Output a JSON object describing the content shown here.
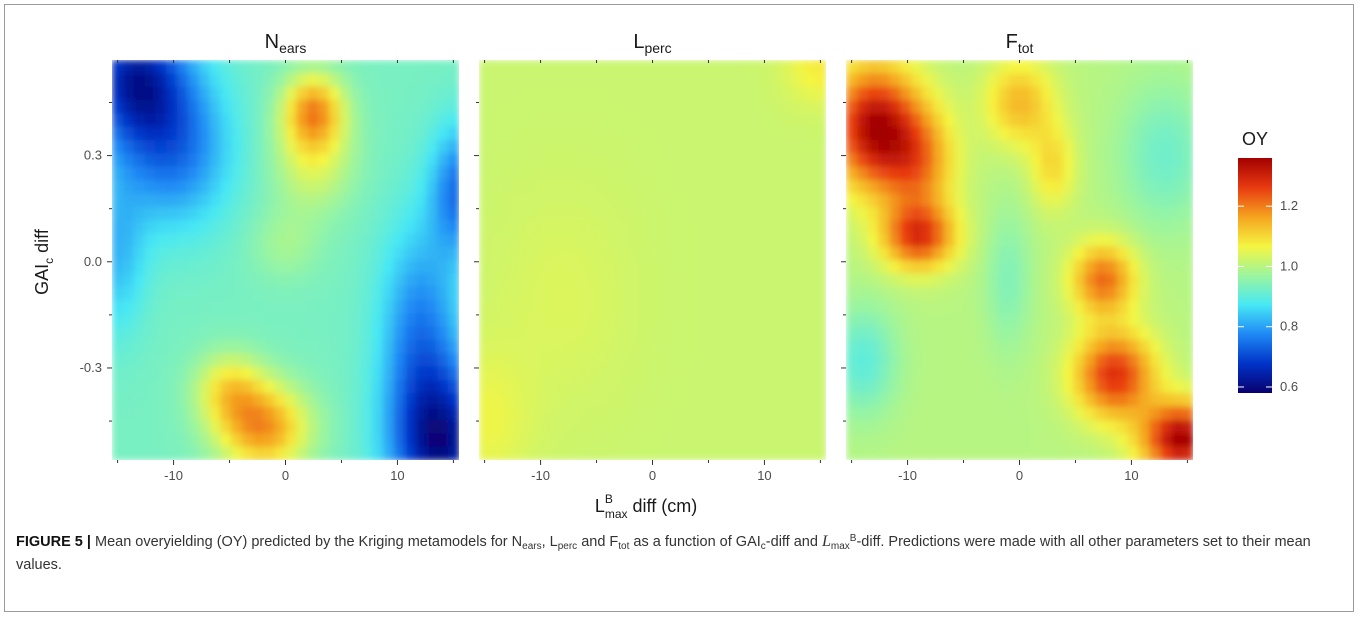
{
  "chart_data": {
    "type": "heatmap",
    "panels": [
      {
        "title": "N",
        "title_sub": "ears"
      },
      {
        "title": "L",
        "title_sub": "perc"
      },
      {
        "title": "F",
        "title_sub": "tot"
      }
    ],
    "x_ticks": [
      -10,
      0,
      10
    ],
    "y_ticks": [
      0.3,
      0.0,
      -0.3
    ],
    "x_tick_labels": [
      "-10",
      "0",
      "10"
    ],
    "y_tick_labels": [
      "0.3",
      "0.0",
      "-0.3"
    ],
    "xlim": [
      -15.5,
      15.5
    ],
    "ylim": [
      -0.56,
      0.57
    ],
    "xlabel": {
      "main": "L",
      "sup": "B",
      "sub": "max",
      "rest": " diff (cm)"
    },
    "ylabel": {
      "main": "GAI",
      "sub": "c",
      "rest": " diff"
    },
    "legend": {
      "title": "OY",
      "placement": "right",
      "ticks": [
        1.2,
        1.0,
        0.8,
        0.6
      ],
      "tick_labels": [
        "1.2",
        "1.0",
        "0.8",
        "0.6"
      ],
      "range": [
        0.58,
        1.36
      ],
      "colormap": [
        "#08006e",
        "#0033c8",
        "#1f88f5",
        "#47e8f5",
        "#9cf59e",
        "#f5f542",
        "#f5a31f",
        "#e83a10",
        "#a30000"
      ]
    },
    "grid": false
  },
  "caption": {
    "label": "FIGURE 5 |",
    "text": " Mean overyielding (OY) predicted by the Kriging metamodels for N<sub>ears</sub>, L<sub>perc</sub> and F<sub>tot</sub> as a function of GAI<sub>c</sub>-diff and <i>L</i><sub>max</sub><sup>B</sup>-diff. Predictions were made with all other parameters set to their mean values."
  }
}
